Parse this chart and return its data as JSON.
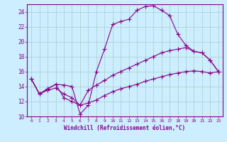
{
  "xlabel": "Windchill (Refroidissement éolien,°C)",
  "bg_color": "#cceeff",
  "line_color": "#880088",
  "grid_color": "#aacccc",
  "series1_x": [
    0,
    1,
    2,
    3,
    4,
    5,
    6,
    7,
    8,
    9,
    10,
    11,
    12,
    13,
    14,
    15,
    16,
    17,
    18,
    19,
    20,
    21,
    22,
    23
  ],
  "series1_y": [
    15.0,
    13.0,
    13.7,
    14.3,
    14.2,
    14.0,
    10.3,
    11.5,
    16.0,
    19.0,
    22.3,
    22.7,
    23.0,
    24.2,
    24.7,
    24.8,
    24.2,
    23.5,
    21.0,
    19.5,
    18.7,
    18.5,
    17.5,
    16.0
  ],
  "series2_x": [
    0,
    1,
    2,
    3,
    4,
    5,
    6,
    7,
    8,
    9,
    10,
    11,
    12,
    13,
    14,
    15,
    16,
    17,
    18,
    19,
    20,
    21,
    22,
    23
  ],
  "series2_y": [
    15.0,
    13.0,
    13.7,
    14.3,
    12.5,
    12.0,
    11.5,
    13.5,
    14.2,
    14.8,
    15.5,
    16.0,
    16.5,
    17.0,
    17.5,
    18.0,
    18.5,
    18.8,
    19.0,
    19.2,
    18.7,
    18.5,
    17.5,
    16.0
  ],
  "series3_x": [
    0,
    1,
    2,
    3,
    4,
    5,
    6,
    7,
    8,
    9,
    10,
    11,
    12,
    13,
    14,
    15,
    16,
    17,
    18,
    19,
    20,
    21,
    22,
    23
  ],
  "series3_y": [
    15.0,
    13.0,
    13.5,
    13.8,
    13.0,
    12.5,
    11.5,
    11.8,
    12.2,
    12.8,
    13.3,
    13.7,
    14.0,
    14.3,
    14.7,
    15.0,
    15.3,
    15.6,
    15.8,
    16.0,
    16.1,
    16.0,
    15.8,
    16.0
  ],
  "xlim": [
    -0.5,
    23.5
  ],
  "ylim": [
    10,
    25
  ],
  "yticks": [
    10,
    12,
    14,
    16,
    18,
    20,
    22,
    24
  ],
  "xticks": [
    0,
    1,
    2,
    3,
    4,
    5,
    6,
    7,
    8,
    9,
    10,
    11,
    12,
    13,
    14,
    15,
    16,
    17,
    18,
    19,
    20,
    21,
    22,
    23
  ],
  "marker": "+",
  "markersize": 4,
  "linewidth": 0.8
}
